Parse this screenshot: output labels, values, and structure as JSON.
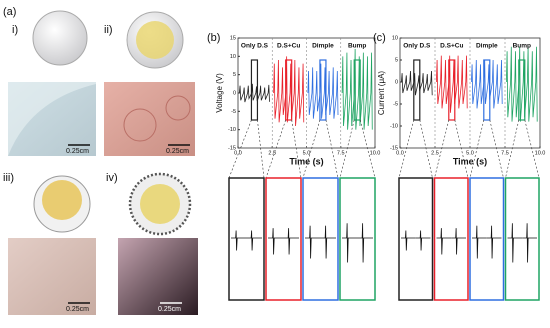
{
  "panels": {
    "a": "(a)",
    "i": "i)",
    "ii": "ii)",
    "iii": "iii)",
    "iv": "iv)",
    "scale_i": "0.25cm",
    "scale_ii": "0.25cm",
    "scale_iii": "0.25cm",
    "scale_iv": "0.25cm"
  },
  "chart_data": [
    {
      "type": "line",
      "panel": "(b)",
      "x_label": "Time (s)",
      "y_label": "Voltage (V)",
      "xlim": [
        0,
        10
      ],
      "ylim": [
        -15,
        15
      ],
      "xticks": [
        {
          "value": 0,
          "label": "0.0"
        },
        {
          "value": 2.5,
          "label": "2.5"
        },
        {
          "value": 5,
          "label": "5.0"
        },
        {
          "value": 7.5,
          "label": "7.5"
        },
        {
          "value": 10,
          "label": "10.0"
        }
      ],
      "yticks": [
        -15,
        -10,
        -5,
        0,
        5,
        10,
        15
      ],
      "series": [
        {
          "name": "Only D.S",
          "color": "#222222",
          "x": [
            0.1,
            0.15,
            0.2,
            0.4,
            0.45,
            0.5,
            0.7,
            0.75,
            0.8,
            1.0,
            1.05,
            1.1,
            1.3,
            1.35,
            1.4,
            1.6,
            1.65,
            1.7,
            1.9,
            1.95,
            2.0,
            2.2,
            2.25,
            2.3
          ],
          "values": [
            0,
            2,
            -2,
            0,
            1.5,
            -2.5,
            0,
            2,
            -1.5,
            0,
            2.5,
            -2,
            0,
            1.8,
            -2.2,
            0,
            2,
            -2,
            0,
            1.5,
            -1.8,
            0,
            2.2,
            -2.4
          ]
        },
        {
          "name": "D.S+Cu",
          "color": "#e8202a",
          "x": [
            2.6,
            2.65,
            2.7,
            2.9,
            2.95,
            3.0,
            3.2,
            3.25,
            3.3,
            3.5,
            3.55,
            3.6,
            3.8,
            3.85,
            3.9,
            4.1,
            4.15,
            4.2,
            4.4,
            4.45,
            4.5,
            4.7,
            4.75,
            4.8
          ],
          "values": [
            0,
            8,
            -7,
            0,
            9,
            -8,
            0,
            7,
            -6,
            0,
            10,
            -8,
            0,
            8,
            -7,
            0,
            9,
            -9,
            0,
            7,
            -7,
            0,
            8,
            -8
          ]
        },
        {
          "name": "Dimple",
          "color": "#2f6fe0",
          "x": [
            5.1,
            5.15,
            5.2,
            5.4,
            5.45,
            5.5,
            5.7,
            5.75,
            5.8,
            6.0,
            6.05,
            6.1,
            6.3,
            6.35,
            6.4,
            6.6,
            6.65,
            6.7,
            6.9,
            6.95,
            7.0,
            7.2,
            7.25,
            7.3
          ],
          "values": [
            0,
            6,
            -6,
            0,
            7,
            -7,
            0,
            6,
            -5,
            0,
            8,
            -7,
            0,
            7,
            -6,
            0,
            6,
            -6,
            0,
            7,
            -7,
            0,
            6,
            -6
          ]
        },
        {
          "name": "Bump",
          "color": "#1fa463",
          "x": [
            7.6,
            7.65,
            7.7,
            7.9,
            7.95,
            8.0,
            8.2,
            8.25,
            8.3,
            8.5,
            8.55,
            8.6,
            8.8,
            8.85,
            8.9,
            9.1,
            9.15,
            9.2,
            9.4,
            9.45,
            9.5,
            9.7,
            9.75,
            9.8
          ],
          "values": [
            0,
            10,
            -9,
            0,
            11,
            -10,
            0,
            9,
            -9,
            0,
            12,
            -10,
            0,
            10,
            -9,
            0,
            11,
            -10,
            0,
            10,
            -9,
            0,
            11,
            -10
          ]
        }
      ]
    },
    {
      "type": "line",
      "panel": "(c)",
      "x_label": "Time (s)",
      "y_label": "Current (μA)",
      "xlim": [
        0,
        10
      ],
      "ylim": [
        -15,
        10
      ],
      "xticks": [
        {
          "value": 0,
          "label": "0.0"
        },
        {
          "value": 2.5,
          "label": "2.5"
        },
        {
          "value": 5,
          "label": "5.0"
        },
        {
          "value": 7.5,
          "label": "7.5"
        },
        {
          "value": 10,
          "label": "10.0"
        }
      ],
      "yticks": [
        -15,
        -10,
        -5,
        0,
        5,
        10
      ],
      "series": [
        {
          "name": "Only D.S",
          "color": "#222222",
          "x": [
            0.1,
            0.15,
            0.2,
            0.4,
            0.45,
            0.5,
            0.7,
            0.75,
            0.8,
            1.0,
            1.05,
            1.1,
            1.3,
            1.35,
            1.4,
            1.6,
            1.65,
            1.7,
            1.9,
            1.95,
            2.0,
            2.2,
            2.25,
            2.3
          ],
          "values": [
            0,
            2,
            -2.5,
            0,
            1.5,
            -2,
            0,
            2.5,
            -2,
            0,
            2,
            -3,
            0,
            1.5,
            -2,
            0,
            2,
            -2.5,
            0,
            1.8,
            -2,
            0,
            2.5,
            -3
          ]
        },
        {
          "name": "D.S+Cu",
          "color": "#e8202a",
          "x": [
            2.6,
            2.65,
            2.7,
            2.9,
            2.95,
            3.0,
            3.2,
            3.25,
            3.3,
            3.5,
            3.55,
            3.6,
            3.8,
            3.85,
            3.9,
            4.1,
            4.15,
            4.2,
            4.4,
            4.45,
            4.5,
            4.7,
            4.75,
            4.8
          ],
          "values": [
            0,
            5,
            -5,
            0,
            6,
            -6,
            0,
            5,
            -5,
            0,
            6,
            -7,
            0,
            5,
            -5,
            0,
            6,
            -6,
            0,
            5,
            -5,
            0,
            6,
            -6
          ]
        },
        {
          "name": "Dimple",
          "color": "#2f6fe0",
          "x": [
            5.1,
            5.15,
            5.2,
            5.4,
            5.45,
            5.5,
            5.7,
            5.75,
            5.8,
            6.0,
            6.05,
            6.1,
            6.3,
            6.35,
            6.4,
            6.6,
            6.65,
            6.7,
            6.9,
            6.95,
            7.0,
            7.2,
            7.25,
            7.3
          ],
          "values": [
            0,
            4,
            -5,
            0,
            5,
            -6,
            0,
            4,
            -5,
            0,
            5,
            -5,
            0,
            4,
            -4,
            0,
            5,
            -6,
            0,
            4,
            -5,
            0,
            5,
            -5
          ]
        },
        {
          "name": "Bump",
          "color": "#1fa463",
          "x": [
            7.6,
            7.65,
            7.7,
            7.9,
            7.95,
            8.0,
            8.2,
            8.25,
            8.3,
            8.5,
            8.55,
            8.6,
            8.8,
            8.85,
            8.9,
            9.1,
            9.15,
            9.2,
            9.4,
            9.45,
            9.5,
            9.7,
            9.75,
            9.8
          ],
          "values": [
            0,
            7,
            -8,
            0,
            8,
            -9,
            0,
            7,
            -8,
            0,
            8,
            -9,
            0,
            7,
            -8,
            0,
            8,
            -9,
            0,
            7,
            -8,
            0,
            8,
            -9
          ]
        }
      ]
    }
  ]
}
